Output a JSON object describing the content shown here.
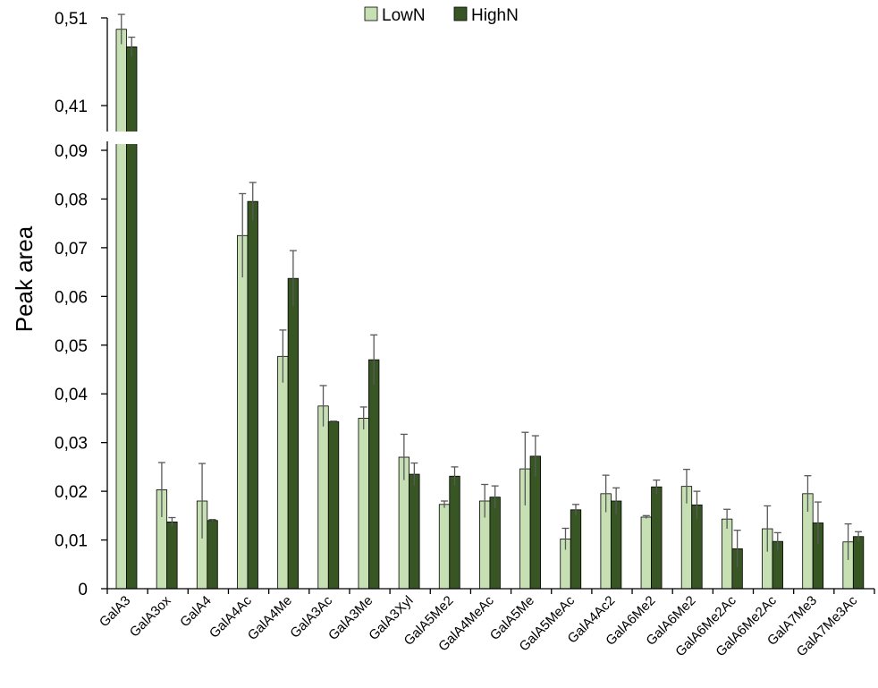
{
  "chart_data": {
    "type": "bar",
    "ylabel": "Peak area",
    "xlabel": "",
    "title": "",
    "legend_position": "top-center",
    "axis_break": {
      "lower_range": [
        0,
        0.09
      ],
      "upper_range": [
        0.41,
        0.51
      ]
    },
    "yticks_lower": [
      "0",
      "0,01",
      "0,02",
      "0,03",
      "0,04",
      "0,05",
      "0,06",
      "0,07",
      "0,08",
      "0,09"
    ],
    "yticks_upper": [
      "0,41",
      "0,51"
    ],
    "categories": [
      "GalA3",
      "GalA3ox",
      "GalA4",
      "GalA4Ac",
      "GalA4Me",
      "GalA3Ac",
      "GalA3Me",
      "GalA3Xyl",
      "GalA5Me2",
      "GalA4MeAc",
      "GalA5Me",
      "GalA5MeAc",
      "GalA4Ac2",
      "GalA6Me2",
      "GalA6Me2",
      "GalA6Me2Ac",
      "GalA6Me2Ac",
      "GalA7Me3",
      "GalA7Me3Ac"
    ],
    "series": [
      {
        "name": "LowN",
        "color": "#c6e0b4",
        "values": [
          0.497,
          0.0203,
          0.018,
          0.0725,
          0.0477,
          0.0375,
          0.035,
          0.027,
          0.0173,
          0.018,
          0.0246,
          0.0102,
          0.0195,
          0.0147,
          0.021,
          0.0143,
          0.0123,
          0.0195,
          0.0096
        ],
        "errors": [
          0.017,
          0.0056,
          0.0077,
          0.0086,
          0.0054,
          0.0042,
          0.0023,
          0.0047,
          0.0007,
          0.0034,
          0.0075,
          0.0022,
          0.0038,
          0.0003,
          0.0035,
          0.002,
          0.0047,
          0.0037,
          0.0037
        ]
      },
      {
        "name": "HighN",
        "color": "#375623",
        "values": [
          0.477,
          0.0137,
          0.014,
          0.0795,
          0.0637,
          0.0343,
          0.047,
          0.0235,
          0.0231,
          0.0188,
          0.0272,
          0.0162,
          0.018,
          0.0209,
          0.0172,
          0.0082,
          0.0097,
          0.0135,
          0.0107
        ]
      }
    ],
    "highn_errors": [
      0.011,
      0.0009,
      0.0002,
      0.0039,
      0.0057,
      0.0001,
      0.0051,
      0.0023,
      0.0019,
      0.0023,
      0.0042,
      0.0011,
      0.0027,
      0.0014,
      0.0028,
      0.0038,
      0.0018,
      0.0043,
      0.001
    ]
  }
}
